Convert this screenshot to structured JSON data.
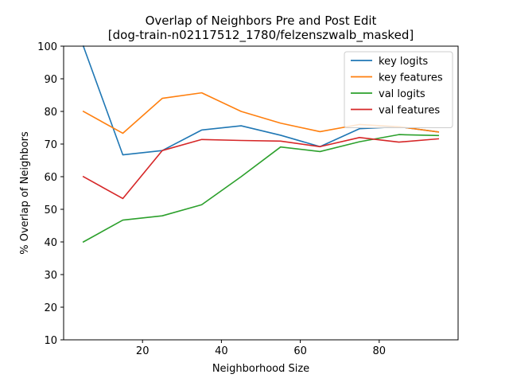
{
  "chart_data": {
    "type": "line",
    "title_line1": "Overlap of Neighbors Pre and Post Edit",
    "title_line2": "[dog-train-n02117512_1780/felzenszwalb_masked]",
    "xlabel": "Neighborhood Size",
    "ylabel": "% Overlap of Neighbors",
    "xlim": [
      0,
      100
    ],
    "ylim": [
      10,
      100
    ],
    "xticks": [
      20,
      40,
      60,
      80
    ],
    "yticks": [
      10,
      20,
      30,
      40,
      50,
      60,
      70,
      80,
      90,
      100
    ],
    "grid": false,
    "legend_position": "upper right",
    "x": [
      5,
      15,
      25,
      35,
      45,
      55,
      65,
      75,
      85,
      95
    ],
    "series": [
      {
        "name": "key logits",
        "color": "#1f77b4",
        "values": [
          100,
          66.7,
          68.0,
          74.3,
          75.6,
          72.7,
          69.2,
          74.7,
          75.3,
          73.7
        ]
      },
      {
        "name": "key features",
        "color": "#ff7f0e",
        "values": [
          80,
          73.3,
          84.0,
          85.7,
          80.0,
          76.4,
          73.8,
          76.0,
          75.3,
          73.7
        ]
      },
      {
        "name": "val logits",
        "color": "#2ca02c",
        "values": [
          40,
          46.7,
          48.0,
          51.4,
          60.0,
          69.1,
          67.7,
          70.7,
          72.9,
          72.6
        ]
      },
      {
        "name": "val features",
        "color": "#d62728",
        "values": [
          60,
          53.3,
          68.0,
          71.4,
          71.1,
          70.9,
          69.2,
          72.0,
          70.6,
          71.6
        ]
      }
    ]
  }
}
